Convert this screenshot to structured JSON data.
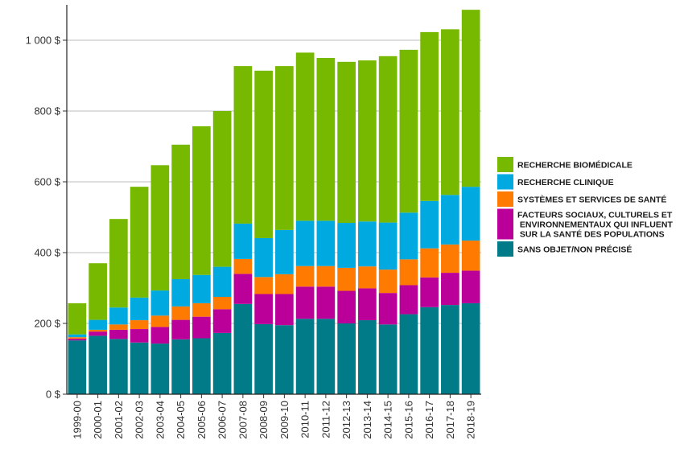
{
  "chart_data": {
    "type": "bar",
    "stacked": true,
    "categories": [
      "1999-00",
      "2000-01",
      "2001-02",
      "2002-03",
      "2003-04",
      "2004-05",
      "2005-06",
      "2006-07",
      "2007-08",
      "2008-09",
      "2009-10",
      "2010-11",
      "2011-12",
      "2012-13",
      "2013-14",
      "2014-15",
      "2015-16",
      "2016-17",
      "2017-18",
      "2018-19"
    ],
    "ylim": [
      0,
      1100
    ],
    "yticks": [
      0,
      200,
      400,
      600,
      800,
      1000
    ],
    "ytick_labels": [
      "0 $",
      "200 $",
      "400 $",
      "600 $",
      "800 $",
      "1 000 $"
    ],
    "grid": "horizontal",
    "legend_position": "right",
    "series": [
      {
        "name": "SANS OBJET/NON PRÉCISÉ",
        "color": "#007b87",
        "values": [
          152,
          165,
          156,
          146,
          143,
          155,
          158,
          173,
          255,
          198,
          195,
          213,
          213,
          200,
          209,
          197,
          226,
          246,
          252,
          257
        ]
      },
      {
        "name": "FACTEURS SOCIAUX, CULTURELS ET ENVIRONNEMENTAUX QUI INFLUENT SUR LA SANTÉ DES POPULATIONS",
        "color": "#bb0099",
        "values": [
          5,
          12,
          26,
          38,
          47,
          55,
          61,
          67,
          85,
          85,
          88,
          91,
          91,
          92,
          90,
          89,
          82,
          84,
          91,
          92
        ]
      },
      {
        "name": "SYSTÈMES ET SERVICES DE SANTÉ",
        "color": "#ff7a00",
        "values": [
          4,
          5,
          15,
          25,
          32,
          38,
          38,
          35,
          42,
          48,
          56,
          58,
          58,
          65,
          62,
          66,
          73,
          82,
          80,
          85
        ]
      },
      {
        "name": "RECHERCHE CLINIQUE",
        "color": "#00a9e0",
        "values": [
          8,
          28,
          48,
          64,
          71,
          77,
          80,
          85,
          100,
          110,
          125,
          128,
          128,
          127,
          127,
          133,
          132,
          134,
          140,
          152
        ]
      },
      {
        "name": "RECHERCHE BIOMÉDICALE",
        "color": "#77b800",
        "values": [
          88,
          160,
          250,
          313,
          354,
          380,
          420,
          440,
          445,
          473,
          463,
          475,
          460,
          455,
          455,
          470,
          460,
          477,
          468,
          500
        ]
      }
    ],
    "legend": [
      {
        "lines": [
          "RECHERCHE BIOMÉDICALE"
        ],
        "color": "#77b800"
      },
      {
        "lines": [
          "RECHERCHE CLINIQUE"
        ],
        "color": "#00a9e0"
      },
      {
        "lines": [
          "SYSTÈMES ET SERVICES DE SANTÉ"
        ],
        "color": "#ff7a00"
      },
      {
        "lines": [
          "FACTEURS SOCIAUX, CULTURELS ET",
          " ENVIRONNEMENTAUX QUI INFLUENT",
          " SUR LA SANTÉ DES POPULATIONS"
        ],
        "color": "#bb0099"
      },
      {
        "lines": [
          "SANS OBJET/NON PRÉCISÉ"
        ],
        "color": "#007b87"
      }
    ]
  }
}
